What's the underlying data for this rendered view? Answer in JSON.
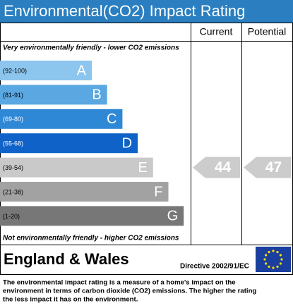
{
  "chart_data": {
    "type": "rating",
    "title": "Environmental(CO2) Impact Rating",
    "columns": [
      "Current",
      "Potential"
    ],
    "top_note": "Very environmentally friendly - lower CO2 emissions",
    "bottom_note": "Not environmentally friendly - higher CO2 emissions",
    "bands": [
      {
        "range": "(92-100)",
        "letter": "A",
        "color": "#8cc5ee"
      },
      {
        "range": "(81-91)",
        "letter": "B",
        "color": "#5aa7e2"
      },
      {
        "range": "(69-80)",
        "letter": "C",
        "color": "#2f88d6"
      },
      {
        "range": "(55-68)",
        "letter": "D",
        "color": "#0f62c8"
      },
      {
        "range": "(39-54)",
        "letter": "E",
        "color": "#c9c9c9"
      },
      {
        "range": "(21-38)",
        "letter": "F",
        "color": "#a2a2a2"
      },
      {
        "range": "(1-20)",
        "letter": "G",
        "color": "#777777"
      }
    ],
    "current": 44,
    "potential": 47,
    "arrow_color": "#cccccc",
    "region": "England & Wales",
    "directive": "Directive 2002/91/EC",
    "description": [
      "The environmental impact rating is a measure of a home's impact on the",
      "environment in terms of carbon dioxide (CO2) emissions. The higher the rating",
      "the less impact it has on the environment."
    ]
  }
}
